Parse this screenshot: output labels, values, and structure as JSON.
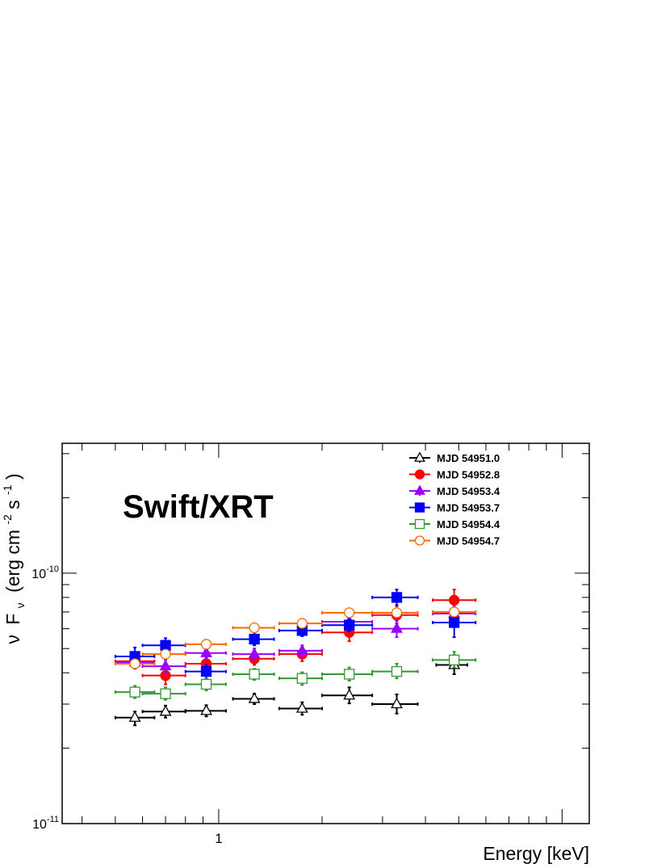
{
  "chart_data": {
    "type": "scatter",
    "title": "",
    "annotation": "Swift/XRT",
    "xlabel": "Energy [keV]",
    "ylabel_parts": {
      "nu": "ν",
      "F": "F",
      "nu_sub": "ν",
      "open": "(erg cm",
      "exp1": "-2",
      "s": " s",
      "exp2": "-1",
      "close": ")"
    },
    "x_scale": "log",
    "y_scale": "log",
    "xlim": [
      0.35,
      12
    ],
    "ylim": [
      1e-11,
      3.3e-10
    ],
    "x_tick_labels": [
      {
        "value": 1,
        "label": "1"
      }
    ],
    "y_tick_labels": [
      {
        "value": 1e-11,
        "base": "10",
        "exp": "-11"
      },
      {
        "value": 1e-10,
        "base": "10",
        "exp": "-10"
      }
    ],
    "grid": false,
    "legend_position": "top-right",
    "series": [
      {
        "name": "MJD 54951.0",
        "color": "#000000",
        "marker": "triangle-open",
        "points": [
          {
            "x": 0.57,
            "xlo": 0.5,
            "xhi": 0.65,
            "y": 2.65e-11,
            "ylo": 2.47e-11,
            "yhi": 2.8e-11
          },
          {
            "x": 0.7,
            "xlo": 0.6,
            "xhi": 0.8,
            "y": 2.8e-11,
            "ylo": 2.65e-11,
            "yhi": 2.96e-11
          },
          {
            "x": 0.92,
            "xlo": 0.8,
            "xhi": 1.05,
            "y": 2.82e-11,
            "ylo": 2.68e-11,
            "yhi": 2.97e-11
          },
          {
            "x": 1.27,
            "xlo": 1.1,
            "xhi": 1.45,
            "y": 3.15e-11,
            "ylo": 3e-11,
            "yhi": 3.3e-11
          },
          {
            "x": 1.75,
            "xlo": 1.5,
            "xhi": 2.0,
            "y": 2.88e-11,
            "ylo": 2.72e-11,
            "yhi": 3.05e-11
          },
          {
            "x": 2.4,
            "xlo": 2.0,
            "xhi": 2.8,
            "y": 3.25e-11,
            "ylo": 3.02e-11,
            "yhi": 3.5e-11
          },
          {
            "x": 3.3,
            "xlo": 2.8,
            "xhi": 3.8,
            "y": 3e-11,
            "ylo": 2.75e-11,
            "yhi": 3.28e-11
          },
          {
            "x": 4.85,
            "xlo": 4.3,
            "xhi": 5.3,
            "y": 4.3e-11,
            "ylo": 3.95e-11,
            "yhi": 4.7e-11
          }
        ]
      },
      {
        "name": "MJD 54952.8",
        "color": "#ff0000",
        "marker": "circle-filled",
        "points": [
          {
            "x": 0.57,
            "xlo": 0.5,
            "xhi": 0.65,
            "y": 4.45e-11,
            "ylo": 4.2e-11,
            "yhi": 4.7e-11
          },
          {
            "x": 0.7,
            "xlo": 0.6,
            "xhi": 0.8,
            "y": 3.9e-11,
            "ylo": 3.6e-11,
            "yhi": 4.15e-11
          },
          {
            "x": 0.92,
            "xlo": 0.8,
            "xhi": 1.05,
            "y": 4.35e-11,
            "ylo": 4.1e-11,
            "yhi": 4.6e-11
          },
          {
            "x": 1.27,
            "xlo": 1.1,
            "xhi": 1.45,
            "y": 4.55e-11,
            "ylo": 4.3e-11,
            "yhi": 4.8e-11
          },
          {
            "x": 1.75,
            "xlo": 1.5,
            "xhi": 2.0,
            "y": 4.75e-11,
            "ylo": 4.45e-11,
            "yhi": 5.05e-11
          },
          {
            "x": 2.4,
            "xlo": 2.0,
            "xhi": 2.8,
            "y": 5.8e-11,
            "ylo": 5.35e-11,
            "yhi": 6.3e-11
          },
          {
            "x": 3.3,
            "xlo": 2.8,
            "xhi": 3.8,
            "y": 6.8e-11,
            "ylo": 6.3e-11,
            "yhi": 7.4e-11
          },
          {
            "x": 4.85,
            "xlo": 4.2,
            "xhi": 5.6,
            "y": 7.8e-11,
            "ylo": 7e-11,
            "yhi": 8.6e-11
          }
        ]
      },
      {
        "name": "MJD 54953.4",
        "color": "#9900ff",
        "marker": "triangle-filled",
        "points": [
          {
            "x": 0.57,
            "xlo": 0.5,
            "xhi": 0.65,
            "y": 4.4e-11,
            "ylo": 4.15e-11,
            "yhi": 4.65e-11
          },
          {
            "x": 0.7,
            "xlo": 0.6,
            "xhi": 0.8,
            "y": 4.25e-11,
            "ylo": 4e-11,
            "yhi": 4.5e-11
          },
          {
            "x": 0.92,
            "xlo": 0.8,
            "xhi": 1.05,
            "y": 4.8e-11,
            "ylo": 4.55e-11,
            "yhi": 5.05e-11
          },
          {
            "x": 1.27,
            "xlo": 1.1,
            "xhi": 1.45,
            "y": 4.75e-11,
            "ylo": 4.5e-11,
            "yhi": 5e-11
          },
          {
            "x": 1.75,
            "xlo": 1.5,
            "xhi": 2.0,
            "y": 4.9e-11,
            "ylo": 4.65e-11,
            "yhi": 5.15e-11
          },
          {
            "x": 2.4,
            "xlo": 2.0,
            "xhi": 2.8,
            "y": 6.4e-11,
            "ylo": 6e-11,
            "yhi": 6.8e-11
          },
          {
            "x": 3.3,
            "xlo": 2.8,
            "xhi": 3.8,
            "y": 6e-11,
            "ylo": 5.55e-11,
            "yhi": 6.45e-11
          },
          {
            "x": 4.85,
            "xlo": 4.2,
            "xhi": 5.6,
            "y": 6.9e-11,
            "ylo": 6.45e-11,
            "yhi": 7.35e-11
          }
        ]
      },
      {
        "name": "MJD 54953.7",
        "color": "#0000ff",
        "marker": "square-filled",
        "points": [
          {
            "x": 0.57,
            "xlo": 0.5,
            "xhi": 0.65,
            "y": 4.65e-11,
            "ylo": 4.3e-11,
            "yhi": 5.05e-11
          },
          {
            "x": 0.7,
            "xlo": 0.6,
            "xhi": 0.8,
            "y": 5.15e-11,
            "ylo": 4.85e-11,
            "yhi": 5.5e-11
          },
          {
            "x": 0.92,
            "xlo": 0.8,
            "xhi": 1.05,
            "y": 4.05e-11,
            "ylo": 3.8e-11,
            "yhi": 4.3e-11
          },
          {
            "x": 1.27,
            "xlo": 1.1,
            "xhi": 1.45,
            "y": 5.45e-11,
            "ylo": 5.15e-11,
            "yhi": 5.8e-11
          },
          {
            "x": 1.75,
            "xlo": 1.5,
            "xhi": 2.0,
            "y": 5.9e-11,
            "ylo": 5.6e-11,
            "yhi": 6.2e-11
          },
          {
            "x": 2.4,
            "xlo": 2.0,
            "xhi": 2.8,
            "y": 6.2e-11,
            "ylo": 5.85e-11,
            "yhi": 6.55e-11
          },
          {
            "x": 3.3,
            "xlo": 2.8,
            "xhi": 3.8,
            "y": 8e-11,
            "ylo": 7.45e-11,
            "yhi": 8.6e-11
          },
          {
            "x": 4.85,
            "xlo": 4.2,
            "xhi": 5.6,
            "y": 6.35e-11,
            "ylo": 5.55e-11,
            "yhi": 7.1e-11
          }
        ]
      },
      {
        "name": "MJD 54954.4",
        "color": "#339933",
        "marker": "square-open",
        "points": [
          {
            "x": 0.57,
            "xlo": 0.5,
            "xhi": 0.65,
            "y": 3.35e-11,
            "ylo": 3.17e-11,
            "yhi": 3.55e-11
          },
          {
            "x": 0.7,
            "xlo": 0.6,
            "xhi": 0.8,
            "y": 3.3e-11,
            "ylo": 3.12e-11,
            "yhi": 3.5e-11
          },
          {
            "x": 0.92,
            "xlo": 0.8,
            "xhi": 1.05,
            "y": 3.6e-11,
            "ylo": 3.4e-11,
            "yhi": 3.8e-11
          },
          {
            "x": 1.27,
            "xlo": 1.1,
            "xhi": 1.45,
            "y": 3.95e-11,
            "ylo": 3.75e-11,
            "yhi": 4.15e-11
          },
          {
            "x": 1.75,
            "xlo": 1.5,
            "xhi": 2.0,
            "y": 3.8e-11,
            "ylo": 3.58e-11,
            "yhi": 4.02e-11
          },
          {
            "x": 2.4,
            "xlo": 2.0,
            "xhi": 2.8,
            "y": 3.95e-11,
            "ylo": 3.72e-11,
            "yhi": 4.2e-11
          },
          {
            "x": 3.3,
            "xlo": 2.8,
            "xhi": 3.8,
            "y": 4.05e-11,
            "ylo": 3.8e-11,
            "yhi": 4.35e-11
          },
          {
            "x": 4.85,
            "xlo": 4.2,
            "xhi": 5.6,
            "y": 4.5e-11,
            "ylo": 4.2e-11,
            "yhi": 4.85e-11
          }
        ]
      },
      {
        "name": "MJD 54954.7",
        "color": "#ff6600",
        "marker": "circle-open",
        "points": [
          {
            "x": 0.57,
            "xlo": 0.5,
            "xhi": 0.65,
            "y": 4.35e-11,
            "ylo": 4.2e-11,
            "yhi": 4.5e-11
          },
          {
            "x": 0.7,
            "xlo": 0.6,
            "xhi": 0.8,
            "y": 4.75e-11,
            "ylo": 4.6e-11,
            "yhi": 4.9e-11
          },
          {
            "x": 0.92,
            "xlo": 0.8,
            "xhi": 1.05,
            "y": 5.2e-11,
            "ylo": 5.05e-11,
            "yhi": 5.35e-11
          },
          {
            "x": 1.27,
            "xlo": 1.1,
            "xhi": 1.45,
            "y": 6.05e-11,
            "ylo": 5.9e-11,
            "yhi": 6.2e-11
          },
          {
            "x": 1.75,
            "xlo": 1.5,
            "xhi": 2.0,
            "y": 6.3e-11,
            "ylo": 6.15e-11,
            "yhi": 6.45e-11
          },
          {
            "x": 2.4,
            "xlo": 2.0,
            "xhi": 2.8,
            "y": 6.95e-11,
            "ylo": 6.75e-11,
            "yhi": 7.15e-11
          },
          {
            "x": 3.3,
            "xlo": 2.8,
            "xhi": 3.8,
            "y": 6.95e-11,
            "ylo": 6.75e-11,
            "yhi": 7.15e-11
          },
          {
            "x": 4.85,
            "xlo": 4.2,
            "xhi": 5.6,
            "y": 7e-11,
            "ylo": 6.8e-11,
            "yhi": 7.2e-11
          }
        ]
      }
    ]
  }
}
